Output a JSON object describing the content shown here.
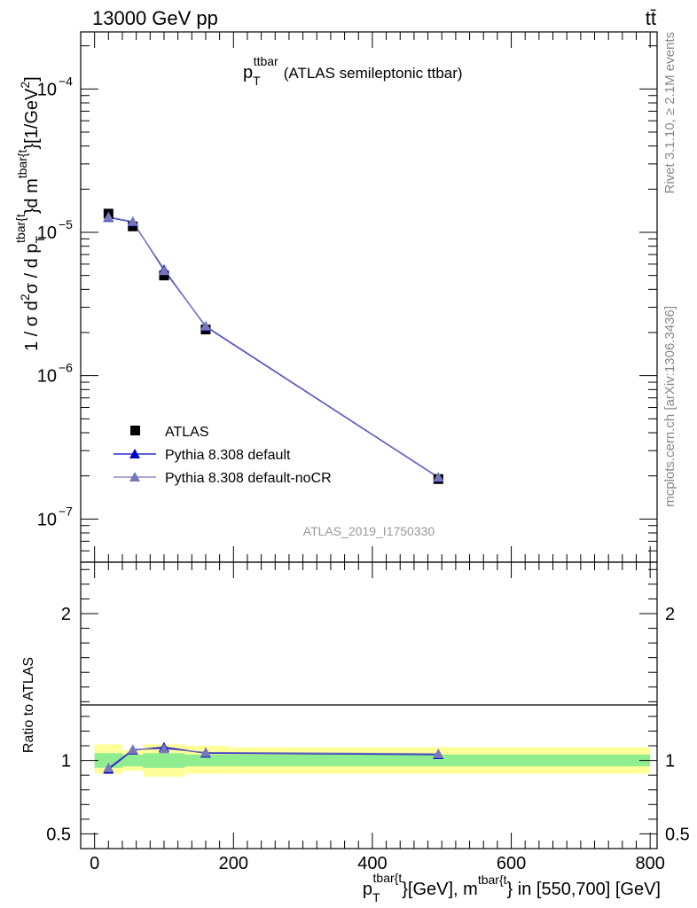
{
  "header": {
    "left": "13000 GeV pp",
    "right": "tt̄"
  },
  "side_labels": {
    "rivet": "Rivet 3.1.10, ≥ 2.1M events",
    "mcplots": "mcplots.cern.ch [arXiv:1306.3436]"
  },
  "analysis_id": "ATLAS_2019_I1750330",
  "colors": {
    "data": "#000000",
    "pythia_default": "#0000cc",
    "pythia_nocr": "#7777bb",
    "band_inner": "#90ee90",
    "band_outer": "#ffff99"
  },
  "chart_data": [
    {
      "type": "scatter",
      "panel": "main",
      "title": {
        "main": "p",
        "sub": "T",
        "sup": "ttbar",
        "rest": "(ATLAS semileptonic ttbar)"
      },
      "ylabel": {
        "prefix": "1 / σ d",
        "sup1": "2",
        "mid": "σ /  d p",
        "sub2": "T",
        "sup2": "tbar{t",
        "mid2": "}d m",
        "sup3": "tbar{t",
        "end": "}[1/GeV",
        "sup4": "2",
        "close": "]"
      },
      "yscale": "log",
      "ylim": [
        5e-08,
        0.00025
      ],
      "xlim": [
        -20,
        810
      ],
      "y_tick_labels": [
        {
          "base": "10",
          "exp": "−4",
          "value": 0.0001
        },
        {
          "base": "10",
          "exp": "−5",
          "value": 1e-05
        },
        {
          "base": "10",
          "exp": "−6",
          "value": 1e-06
        },
        {
          "base": "10",
          "exp": "−7",
          "value": 1e-07
        }
      ],
      "legend_position": "lower-left",
      "series": [
        {
          "name": "ATLAS",
          "marker": "square",
          "x": [
            20,
            55,
            100,
            160,
            495
          ],
          "y": [
            1.35e-05,
            1.1e-05,
            5e-06,
            2.1e-06,
            1.9e-07
          ]
        },
        {
          "name": "Pythia 8.308 default",
          "marker": "triangle",
          "x": [
            20,
            55,
            100,
            160,
            495
          ],
          "y": [
            1.27e-05,
            1.18e-05,
            5.5e-06,
            2.2e-06,
            1.95e-07
          ]
        },
        {
          "name": "Pythia 8.308 default-noCR",
          "marker": "triangle",
          "x": [
            20,
            55,
            100,
            160,
            495
          ],
          "y": [
            1.28e-05,
            1.19e-05,
            5.4e-06,
            2.22e-06,
            1.96e-07
          ]
        }
      ]
    },
    {
      "type": "line",
      "panel": "ratio",
      "ylabel": "Ratio to ATLAS",
      "ylim": [
        0.4,
        2.35
      ],
      "xlim": [
        -20,
        810
      ],
      "x_tick_labels": [
        "0",
        "200",
        "400",
        "600",
        "800"
      ],
      "y_tick_labels": [
        "0.5",
        "1",
        "2"
      ],
      "xlabel": {
        "p": "p",
        "sub1": "T",
        "sup1": "tbar{t",
        "mid": "}[GeV], m",
        "sup2": "tbar{t",
        "end": "} in [550,700] [GeV]"
      },
      "bands": [
        {
          "x0": 0,
          "x1": 40,
          "inner": [
            0.95,
            1.05
          ],
          "outer": [
            0.91,
            1.11
          ]
        },
        {
          "x0": 40,
          "x1": 70,
          "inner": [
            0.96,
            1.04
          ],
          "outer": [
            0.93,
            1.07
          ]
        },
        {
          "x0": 70,
          "x1": 130,
          "inner": [
            0.95,
            1.05
          ],
          "outer": [
            0.89,
            1.11
          ]
        },
        {
          "x0": 130,
          "x1": 190,
          "inner": [
            0.96,
            1.04
          ],
          "outer": [
            0.91,
            1.1
          ]
        },
        {
          "x0": 190,
          "x1": 800,
          "inner": [
            0.96,
            1.04
          ],
          "outer": [
            0.91,
            1.09
          ]
        }
      ],
      "series": [
        {
          "name": "Pythia 8.308 default",
          "x": [
            20,
            55,
            100,
            160,
            495
          ],
          "y": [
            0.94,
            1.07,
            1.09,
            1.05,
            1.04
          ]
        },
        {
          "name": "Pythia 8.308 default-noCR",
          "x": [
            20,
            55,
            100,
            160,
            495
          ],
          "y": [
            0.95,
            1.075,
            1.08,
            1.055,
            1.045
          ]
        }
      ]
    }
  ]
}
